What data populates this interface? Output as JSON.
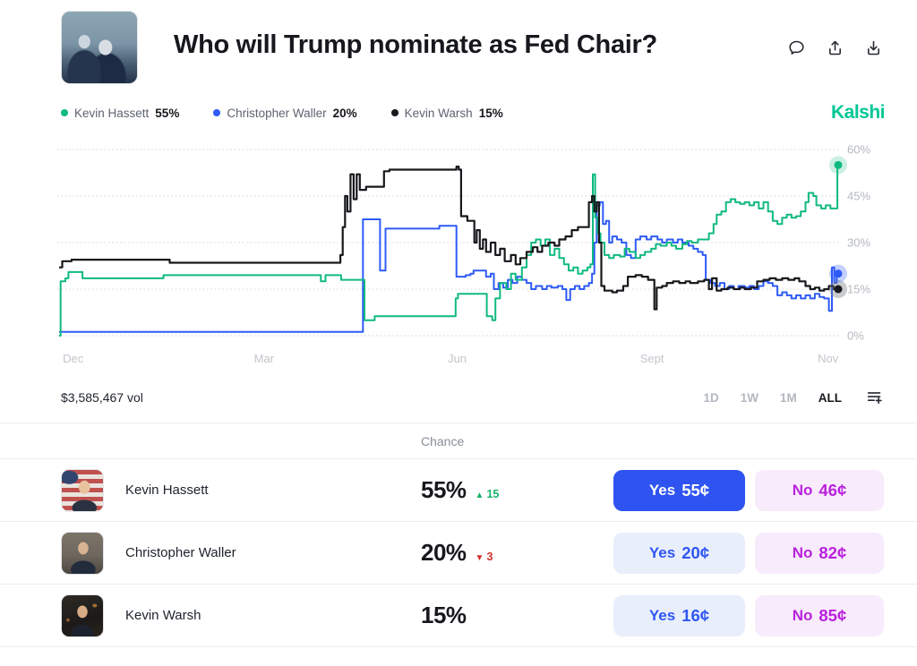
{
  "header": {
    "title": "Who will Trump nominate as Fed Chair?",
    "icons": [
      "comment-icon",
      "share-icon",
      "download-icon"
    ]
  },
  "brand": "Kalshi",
  "legend": [
    {
      "name": "Kevin Hassett",
      "pct": "55%",
      "color": "#10b981"
    },
    {
      "name": "Christopher Waller",
      "pct": "20%",
      "color": "#2e5bf7"
    },
    {
      "name": "Kevin Warsh",
      "pct": "15%",
      "color": "#17181c"
    }
  ],
  "chart_data": {
    "type": "line",
    "interpolation": "step-after",
    "ylim": [
      0,
      60
    ],
    "y_ticks": [
      {
        "value": 0,
        "label": "0%"
      },
      {
        "value": 15,
        "label": "15%"
      },
      {
        "value": 30,
        "label": "30%"
      },
      {
        "value": 45,
        "label": "45%"
      },
      {
        "value": 60,
        "label": "60%"
      }
    ],
    "x_ticks": [
      {
        "pos": 1.8,
        "label": "Dec"
      },
      {
        "pos": 26.3,
        "label": "Mar"
      },
      {
        "pos": 51.1,
        "label": "Jun"
      },
      {
        "pos": 76.1,
        "label": "Sept"
      },
      {
        "pos": 98.7,
        "label": "Nov"
      }
    ],
    "grid": "dotted",
    "legend_position": "top-left",
    "series": [
      {
        "name": "Kevin Hassett",
        "color": "#10b981",
        "halo": "rgba(16,185,129,0.22)",
        "z": 2,
        "end_value": 55,
        "points": [
          [
            0,
            0
          ],
          [
            0.2,
            17.5
          ],
          [
            0.8,
            18.5
          ],
          [
            1.2,
            20.5
          ],
          [
            2.6,
            20.5
          ],
          [
            3,
            18.5
          ],
          [
            13,
            18.5
          ],
          [
            13.4,
            19.5
          ],
          [
            33.2,
            19.5
          ],
          [
            33.6,
            17.5
          ],
          [
            34.2,
            19.5
          ],
          [
            35.8,
            19.5
          ],
          [
            36.2,
            18
          ],
          [
            38.9,
            18
          ],
          [
            39.2,
            5
          ],
          [
            40.5,
            6.3
          ],
          [
            50.7,
            6.3
          ],
          [
            50.9,
            12
          ],
          [
            51.2,
            13.5
          ],
          [
            54.6,
            13.5
          ],
          [
            54.9,
            6.3
          ],
          [
            55.6,
            5
          ],
          [
            56,
            12
          ],
          [
            56.6,
            17
          ],
          [
            57.4,
            15
          ],
          [
            58,
            20
          ],
          [
            58.6,
            18
          ],
          [
            59.4,
            22
          ],
          [
            60,
            26
          ],
          [
            60.6,
            30
          ],
          [
            61.2,
            31
          ],
          [
            61.8,
            29
          ],
          [
            62.4,
            31
          ],
          [
            63,
            26
          ],
          [
            63.6,
            28
          ],
          [
            64.2,
            25
          ],
          [
            64.8,
            23
          ],
          [
            65.4,
            21
          ],
          [
            66,
            22
          ],
          [
            66.6,
            20
          ],
          [
            67.2,
            21
          ],
          [
            67.8,
            22
          ],
          [
            68.2,
            23
          ],
          [
            68.5,
            52
          ],
          [
            68.8,
            38
          ],
          [
            69.1,
            33
          ],
          [
            69.5,
            30
          ],
          [
            70,
            26
          ],
          [
            70.6,
            25
          ],
          [
            71.2,
            26
          ],
          [
            72,
            25.5
          ],
          [
            72.6,
            28
          ],
          [
            73.2,
            27
          ],
          [
            74,
            25
          ],
          [
            74.6,
            26
          ],
          [
            75.2,
            27
          ],
          [
            76,
            28
          ],
          [
            76.6,
            29.5
          ],
          [
            77.2,
            29
          ],
          [
            78,
            30
          ],
          [
            78.6,
            29
          ],
          [
            79.2,
            28
          ],
          [
            80,
            29.5
          ],
          [
            80.6,
            30.5
          ],
          [
            81.2,
            30
          ],
          [
            82,
            31
          ],
          [
            82.8,
            31
          ],
          [
            83.4,
            33
          ],
          [
            84,
            36
          ],
          [
            84.4,
            39
          ],
          [
            85,
            40
          ],
          [
            85.6,
            43
          ],
          [
            86.2,
            44
          ],
          [
            86.8,
            43
          ],
          [
            87.4,
            42.5
          ],
          [
            88,
            43
          ],
          [
            88.6,
            42
          ],
          [
            89.2,
            43
          ],
          [
            89.8,
            41
          ],
          [
            90.4,
            43
          ],
          [
            91,
            40
          ],
          [
            91.6,
            37
          ],
          [
            92.2,
            36
          ],
          [
            92.8,
            38
          ],
          [
            93.4,
            39
          ],
          [
            94,
            38
          ],
          [
            94.6,
            38.5
          ],
          [
            95.2,
            40
          ],
          [
            95.8,
            43
          ],
          [
            96.2,
            46
          ],
          [
            96.8,
            45
          ],
          [
            97.2,
            42
          ],
          [
            97.8,
            41
          ],
          [
            98.4,
            42
          ],
          [
            99,
            41
          ],
          [
            99.6,
            41
          ],
          [
            99.9,
            55
          ],
          [
            100,
            55
          ]
        ]
      },
      {
        "name": "Christopher Waller",
        "color": "#2e5bf7",
        "halo": "rgba(46,91,247,0.28)",
        "z": 1,
        "end_value": 20,
        "points": [
          [
            0,
            1.2
          ],
          [
            38.7,
            1.2
          ],
          [
            39,
            37.5
          ],
          [
            40.8,
            37.5
          ],
          [
            41.2,
            21
          ],
          [
            41.6,
            21
          ],
          [
            41.9,
            34.5
          ],
          [
            48.5,
            34.5
          ],
          [
            48.8,
            35.4
          ],
          [
            50.6,
            35.4
          ],
          [
            51,
            19
          ],
          [
            52.2,
            19.5
          ],
          [
            52.8,
            20
          ],
          [
            53.2,
            21
          ],
          [
            53.6,
            21
          ],
          [
            54.8,
            19
          ],
          [
            55.4,
            20
          ],
          [
            55.8,
            15
          ],
          [
            56.4,
            17
          ],
          [
            57,
            15.5
          ],
          [
            57.6,
            18
          ],
          [
            58.2,
            17
          ],
          [
            58.8,
            19
          ],
          [
            59.4,
            18
          ],
          [
            60,
            17
          ],
          [
            60.6,
            15
          ],
          [
            61.2,
            16
          ],
          [
            62,
            15
          ],
          [
            62.6,
            16
          ],
          [
            63.2,
            15.5
          ],
          [
            64,
            16
          ],
          [
            64.6,
            15
          ],
          [
            65.1,
            11.5
          ],
          [
            65.6,
            15
          ],
          [
            66.2,
            16
          ],
          [
            66.8,
            15
          ],
          [
            67.4,
            16
          ],
          [
            68,
            17
          ],
          [
            68.4,
            20
          ],
          [
            68.7,
            30
          ],
          [
            69,
            42
          ],
          [
            69.4,
            43
          ],
          [
            69.8,
            36
          ],
          [
            70.2,
            37
          ],
          [
            70.6,
            30
          ],
          [
            71,
            32
          ],
          [
            71.6,
            31
          ],
          [
            72.2,
            30
          ],
          [
            72.8,
            26
          ],
          [
            73.4,
            25
          ],
          [
            74,
            31
          ],
          [
            74.6,
            32
          ],
          [
            75.4,
            31
          ],
          [
            76,
            32
          ],
          [
            76.8,
            31
          ],
          [
            77.4,
            30
          ],
          [
            78,
            31
          ],
          [
            78.8,
            30
          ],
          [
            79.4,
            31
          ],
          [
            80,
            30
          ],
          [
            80.8,
            29
          ],
          [
            81.4,
            28
          ],
          [
            82,
            27
          ],
          [
            82.6,
            26
          ],
          [
            83,
            18
          ],
          [
            83.6,
            17
          ],
          [
            84.2,
            16
          ],
          [
            84.8,
            17
          ],
          [
            85.4,
            15
          ],
          [
            86,
            16
          ],
          [
            86.6,
            15
          ],
          [
            87.2,
            16
          ],
          [
            88,
            15.5
          ],
          [
            88.6,
            16
          ],
          [
            89.2,
            15
          ],
          [
            89.8,
            16
          ],
          [
            90.4,
            17.5
          ],
          [
            91,
            17
          ],
          [
            91.6,
            16
          ],
          [
            92.2,
            13
          ],
          [
            92.8,
            14
          ],
          [
            93.4,
            13
          ],
          [
            94,
            12
          ],
          [
            94.6,
            13
          ],
          [
            95.2,
            12
          ],
          [
            95.8,
            13
          ],
          [
            96.4,
            12
          ],
          [
            97,
            13.5
          ],
          [
            97.6,
            12.5
          ],
          [
            98.2,
            12
          ],
          [
            98.8,
            8
          ],
          [
            99.2,
            22
          ],
          [
            99.5,
            17
          ],
          [
            99.8,
            20
          ],
          [
            100,
            20
          ]
        ]
      },
      {
        "name": "Kevin Warsh",
        "color": "#17181c",
        "halo": "rgba(120,125,133,0.40)",
        "z": 3,
        "end_value": 15,
        "points": [
          [
            0,
            22
          ],
          [
            0.4,
            24
          ],
          [
            1.6,
            24.5
          ],
          [
            13.8,
            24.5
          ],
          [
            14.2,
            23.5
          ],
          [
            35.8,
            23.5
          ],
          [
            36.1,
            26
          ],
          [
            36.4,
            35
          ],
          [
            36.7,
            45
          ],
          [
            37,
            40
          ],
          [
            37.4,
            52
          ],
          [
            37.8,
            44
          ],
          [
            38.2,
            52
          ],
          [
            38.6,
            47
          ],
          [
            39.4,
            48
          ],
          [
            41.4,
            48
          ],
          [
            41.7,
            53
          ],
          [
            42.4,
            53.5
          ],
          [
            50.8,
            53.5
          ],
          [
            51,
            54.5
          ],
          [
            51.3,
            53.5
          ],
          [
            51.6,
            38.5
          ],
          [
            52.4,
            37
          ],
          [
            53.3,
            30
          ],
          [
            53.6,
            34
          ],
          [
            54,
            28
          ],
          [
            54.4,
            31
          ],
          [
            54.8,
            27
          ],
          [
            55.4,
            30
          ],
          [
            56,
            26
          ],
          [
            56.6,
            28
          ],
          [
            57.2,
            24
          ],
          [
            58,
            26
          ],
          [
            58.6,
            23
          ],
          [
            59.2,
            25
          ],
          [
            60,
            27
          ],
          [
            60.8,
            28.5
          ],
          [
            61.4,
            27
          ],
          [
            62,
            29
          ],
          [
            62.8,
            30
          ],
          [
            63.6,
            29
          ],
          [
            64.2,
            31
          ],
          [
            65,
            32
          ],
          [
            65.8,
            34
          ],
          [
            66.6,
            35
          ],
          [
            68,
            43
          ],
          [
            68.4,
            45
          ],
          [
            68.7,
            40
          ],
          [
            69,
            43
          ],
          [
            69.3,
            30
          ],
          [
            69.6,
            16
          ],
          [
            70,
            14.5
          ],
          [
            71,
            14
          ],
          [
            71.6,
            14.5
          ],
          [
            72.4,
            16
          ],
          [
            73,
            19
          ],
          [
            74,
            19.5
          ],
          [
            74.8,
            19
          ],
          [
            75.6,
            18
          ],
          [
            76.4,
            8.5
          ],
          [
            76.7,
            15.5
          ],
          [
            77.4,
            16
          ],
          [
            78,
            17
          ],
          [
            78.8,
            17.5
          ],
          [
            79.6,
            17
          ],
          [
            80.4,
            17.5
          ],
          [
            81,
            17
          ],
          [
            82,
            17.5
          ],
          [
            82.8,
            18
          ],
          [
            83.4,
            15
          ],
          [
            83.8,
            18.5
          ],
          [
            84.4,
            14.5
          ],
          [
            85,
            15
          ],
          [
            85.8,
            15.5
          ],
          [
            86.6,
            15
          ],
          [
            87.4,
            15.5
          ],
          [
            88,
            15
          ],
          [
            88.8,
            15.5
          ],
          [
            89.6,
            17.5
          ],
          [
            90.4,
            18
          ],
          [
            91.2,
            18.5
          ],
          [
            92,
            18
          ],
          [
            92.8,
            18.5
          ],
          [
            93.6,
            18
          ],
          [
            94.4,
            18.5
          ],
          [
            95,
            17.5
          ],
          [
            95.8,
            16
          ],
          [
            96.4,
            15
          ],
          [
            97,
            15.5
          ],
          [
            97.6,
            14.5
          ],
          [
            98.2,
            15
          ],
          [
            98.8,
            16
          ],
          [
            99.4,
            15
          ],
          [
            100,
            15
          ]
        ]
      }
    ]
  },
  "volume": "$3,585,467 vol",
  "ranges": {
    "options": [
      "1D",
      "1W",
      "1M",
      "ALL"
    ],
    "active": "ALL",
    "icon": "add-watchlist-icon"
  },
  "table": {
    "chance_header": "Chance",
    "rows": [
      {
        "name": "Kevin Hassett",
        "chance": "55%",
        "delta_arrow": "▲",
        "delta_value": "15",
        "delta_dir": "up",
        "yes_label": "Yes",
        "yes_price": "55¢",
        "no_label": "No",
        "no_price": "46¢",
        "yes_style": "solid"
      },
      {
        "name": "Christopher Waller",
        "chance": "20%",
        "delta_arrow": "▼",
        "delta_value": "3",
        "delta_dir": "down",
        "yes_label": "Yes",
        "yes_price": "20¢",
        "no_label": "No",
        "no_price": "82¢",
        "yes_style": "light"
      },
      {
        "name": "Kevin Warsh",
        "chance": "15%",
        "delta_arrow": "",
        "delta_value": "",
        "delta_dir": "none",
        "yes_label": "Yes",
        "yes_price": "16¢",
        "no_label": "No",
        "no_price": "85¢",
        "yes_style": "light"
      }
    ]
  }
}
